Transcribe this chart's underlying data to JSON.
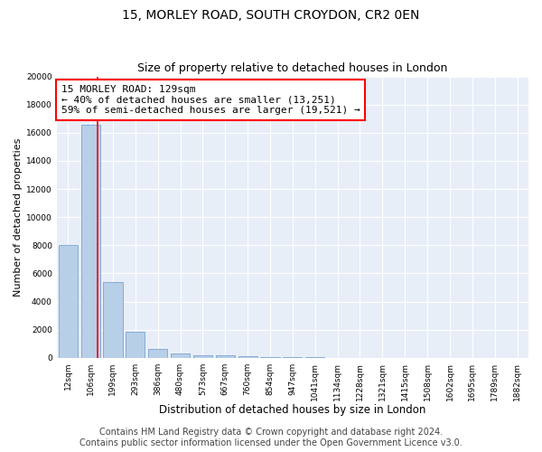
{
  "title1": "15, MORLEY ROAD, SOUTH CROYDON, CR2 0EN",
  "title2": "Size of property relative to detached houses in London",
  "xlabel": "Distribution of detached houses by size in London",
  "ylabel": "Number of detached properties",
  "bar_labels": [
    "12sqm",
    "106sqm",
    "199sqm",
    "293sqm",
    "386sqm",
    "480sqm",
    "573sqm",
    "667sqm",
    "760sqm",
    "854sqm",
    "947sqm",
    "1041sqm",
    "1134sqm",
    "1228sqm",
    "1321sqm",
    "1415sqm",
    "1508sqm",
    "1602sqm",
    "1695sqm",
    "1789sqm",
    "1882sqm"
  ],
  "bar_values": [
    8050,
    16550,
    5400,
    1850,
    650,
    300,
    210,
    200,
    150,
    80,
    50,
    30,
    20,
    15,
    10,
    8,
    5,
    4,
    3,
    2,
    1
  ],
  "bar_color": "#b8cfe8",
  "bar_edge_color": "#6699cc",
  "red_line_x": 1.3,
  "annotation_text": "15 MORLEY ROAD: 129sqm\n← 40% of detached houses are smaller (13,251)\n59% of semi-detached houses are larger (19,521) →",
  "annotation_box_color": "white",
  "annotation_box_edge": "red",
  "ylim": [
    0,
    20000
  ],
  "yticks": [
    0,
    2000,
    4000,
    6000,
    8000,
    10000,
    12000,
    14000,
    16000,
    18000,
    20000
  ],
  "footer_line1": "Contains HM Land Registry data © Crown copyright and database right 2024.",
  "footer_line2": "Contains public sector information licensed under the Open Government Licence v3.0.",
  "bg_color": "#e8eef8",
  "grid_color": "white",
  "title1_fontsize": 10,
  "title2_fontsize": 9,
  "xlabel_fontsize": 8.5,
  "ylabel_fontsize": 8,
  "tick_fontsize": 6.5,
  "annotation_fontsize": 8,
  "footer_fontsize": 7
}
